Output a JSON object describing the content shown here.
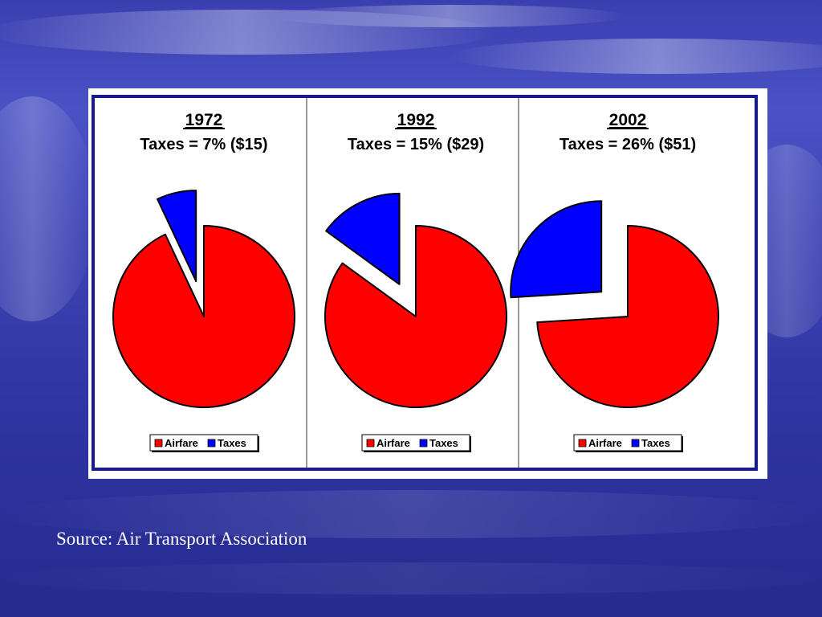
{
  "slide": {
    "source": "Source: Air Transport Association"
  },
  "colors": {
    "airfare": "#ff0000",
    "taxes": "#0000ff",
    "frame": "#1a1a8a"
  },
  "chart_data": [
    {
      "type": "pie",
      "title": "1972",
      "subtitle": "Taxes = 7% ($15)",
      "categories": [
        "Airfare",
        "Taxes"
      ],
      "values": [
        93,
        7
      ],
      "exploded": "Taxes",
      "legend": "bottom"
    },
    {
      "type": "pie",
      "title": "1992",
      "subtitle": "Taxes = 15% ($29)",
      "categories": [
        "Airfare",
        "Taxes"
      ],
      "values": [
        85,
        15
      ],
      "exploded": "Taxes",
      "legend": "bottom"
    },
    {
      "type": "pie",
      "title": "2002",
      "subtitle": "Taxes = 26% ($51)",
      "categories": [
        "Airfare",
        "Taxes"
      ],
      "values": [
        74,
        26
      ],
      "exploded": "Taxes",
      "legend": "bottom"
    }
  ]
}
